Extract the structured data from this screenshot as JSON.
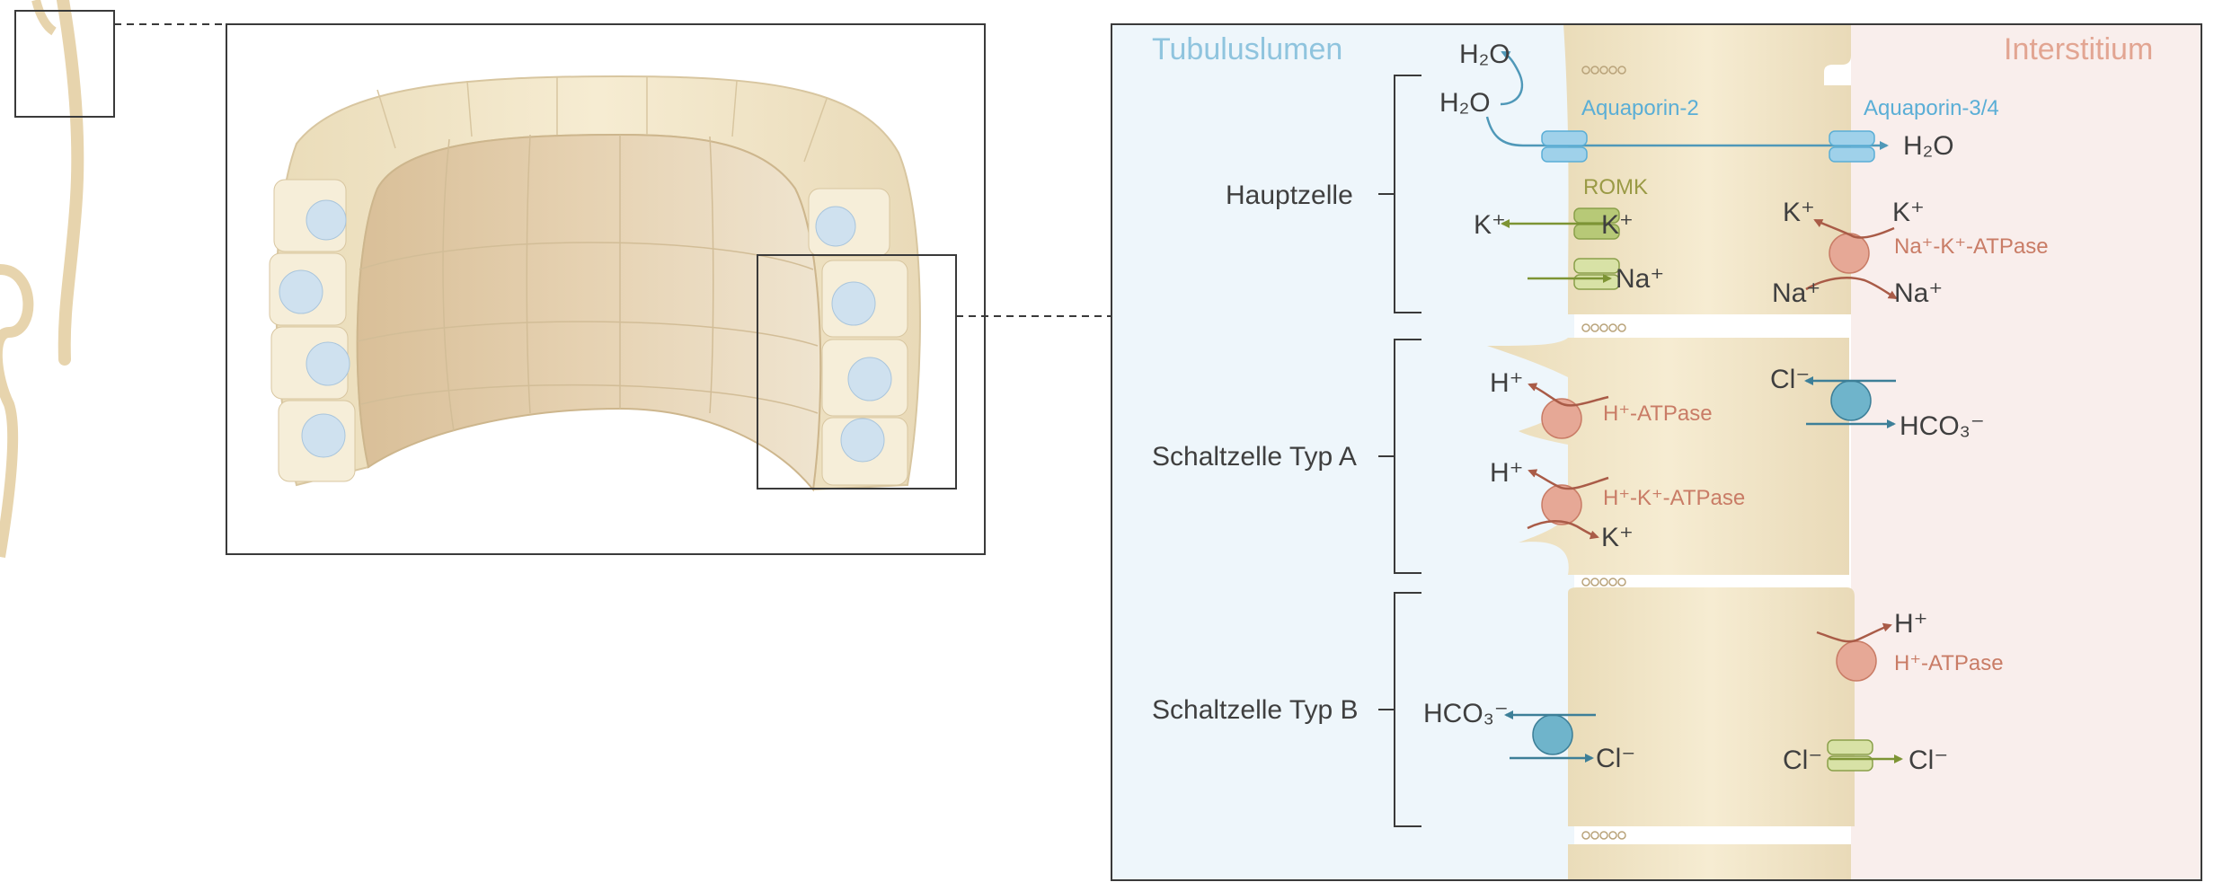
{
  "labels": {
    "lumen": "Tubuluslumen",
    "interstitium": "Interstitium",
    "hauptzelle": "Hauptzelle",
    "typA": "Schaltzelle Typ A",
    "typB": "Schaltzelle Typ B",
    "aquaporin2": "Aquaporin-2",
    "aquaporin34": "Aquaporin-3/4",
    "romk": "ROMK",
    "nakatpase": "Na⁺-K⁺-ATPase",
    "hatpase": "H⁺-ATPase",
    "hkatpase": "H⁺-K⁺-ATPase",
    "hatpase_b": "H⁺-ATPase"
  },
  "ions": {
    "h2o_a": "H₂O",
    "h2o_b": "H₂O",
    "h2o_c": "H₂O",
    "k_lumen": "K⁺",
    "k_cell": "K⁺",
    "na_cell": "Na⁺",
    "k_int_left": "K⁺",
    "k_int_right": "K⁺",
    "na_int_left": "Na⁺",
    "na_int_right": "Na⁺",
    "h_a1": "H⁺",
    "h_a2": "H⁺",
    "k_a2": "K⁺",
    "cl_a": "Cl⁻",
    "hco3_a": "HCO₃⁻",
    "hco3_b": "HCO₃⁻",
    "cl_b_apical": "Cl⁻",
    "h_b": "H⁺",
    "cl_b_in": "Cl⁻",
    "cl_b_out": "Cl⁻"
  },
  "colors": {
    "lumen_bg": "#eef6fb",
    "interstitium_bg": "#f9eeec",
    "cell_fill": "#eadcbb",
    "aquaporin": "#9fd1ea",
    "romk": "#b7c977",
    "pump": "#e6a896",
    "exchanger": "#6fb4cb"
  }
}
